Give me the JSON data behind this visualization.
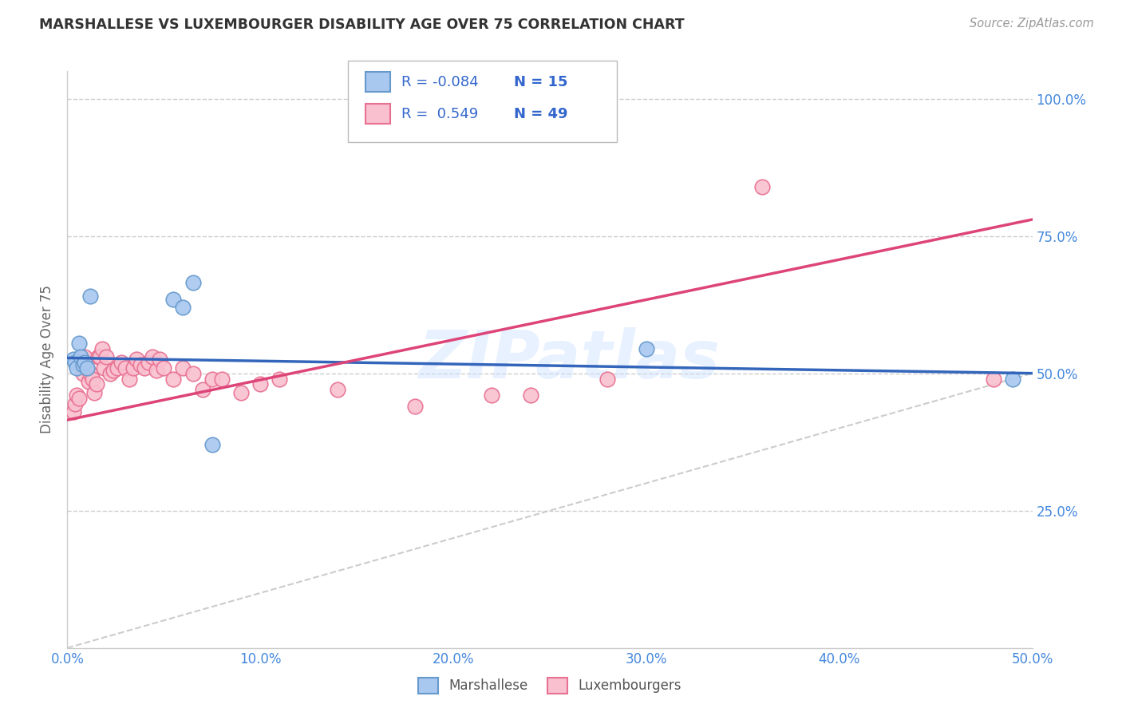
{
  "title": "MARSHALLESE VS LUXEMBOURGER DISABILITY AGE OVER 75 CORRELATION CHART",
  "source": "Source: ZipAtlas.com",
  "ylabel": "Disability Age Over 75",
  "xlim": [
    0.0,
    0.5
  ],
  "ylim": [
    0.0,
    1.05
  ],
  "xtick_labels": [
    "0.0%",
    "10.0%",
    "20.0%",
    "30.0%",
    "40.0%",
    "50.0%"
  ],
  "xtick_vals": [
    0.0,
    0.1,
    0.2,
    0.3,
    0.4,
    0.5
  ],
  "ytick_labels": [
    "25.0%",
    "50.0%",
    "75.0%",
    "100.0%"
  ],
  "ytick_vals": [
    0.25,
    0.5,
    0.75,
    1.0
  ],
  "legend_R_blue": "-0.084",
  "legend_N_blue": "15",
  "legend_R_pink": "0.549",
  "legend_N_pink": "49",
  "blue_scatter_color": "#A8C8F0",
  "pink_scatter_color": "#F9C0D0",
  "blue_edge_color": "#6699CC",
  "pink_edge_color": "#E87090",
  "blue_line_color": "#3366BB",
  "pink_line_color": "#DD4477",
  "diag_line_color": "#CCCCCC",
  "watermark": "ZIPatlas",
  "marshallese_x": [
    0.003,
    0.004,
    0.005,
    0.006,
    0.007,
    0.008,
    0.009,
    0.01,
    0.012,
    0.055,
    0.06,
    0.065,
    0.075,
    0.3,
    0.49
  ],
  "marshallese_y": [
    0.525,
    0.52,
    0.51,
    0.555,
    0.53,
    0.515,
    0.52,
    0.51,
    0.64,
    0.635,
    0.62,
    0.665,
    0.37,
    0.545,
    0.49
  ],
  "luxembourger_x": [
    0.003,
    0.004,
    0.005,
    0.006,
    0.007,
    0.008,
    0.009,
    0.01,
    0.011,
    0.012,
    0.013,
    0.014,
    0.015,
    0.016,
    0.017,
    0.018,
    0.019,
    0.02,
    0.022,
    0.024,
    0.026,
    0.028,
    0.03,
    0.032,
    0.034,
    0.036,
    0.038,
    0.04,
    0.042,
    0.044,
    0.046,
    0.048,
    0.05,
    0.055,
    0.06,
    0.065,
    0.07,
    0.075,
    0.08,
    0.09,
    0.1,
    0.11,
    0.14,
    0.18,
    0.22,
    0.24,
    0.28,
    0.36,
    0.48
  ],
  "luxembourger_y": [
    0.43,
    0.445,
    0.46,
    0.455,
    0.52,
    0.5,
    0.53,
    0.51,
    0.485,
    0.5,
    0.49,
    0.465,
    0.48,
    0.53,
    0.53,
    0.545,
    0.51,
    0.53,
    0.5,
    0.505,
    0.51,
    0.52,
    0.51,
    0.49,
    0.51,
    0.525,
    0.515,
    0.51,
    0.52,
    0.53,
    0.505,
    0.525,
    0.51,
    0.49,
    0.51,
    0.5,
    0.47,
    0.49,
    0.49,
    0.465,
    0.48,
    0.49,
    0.47,
    0.44,
    0.46,
    0.46,
    0.49,
    0.84,
    0.49
  ],
  "blue_trendline_x0": 0.0,
  "blue_trendline_y0": 0.528,
  "blue_trendline_x1": 0.5,
  "blue_trendline_y1": 0.5,
  "pink_trendline_x0": 0.0,
  "pink_trendline_y0": 0.415,
  "pink_trendline_x1": 0.5,
  "pink_trendline_y1": 0.78
}
